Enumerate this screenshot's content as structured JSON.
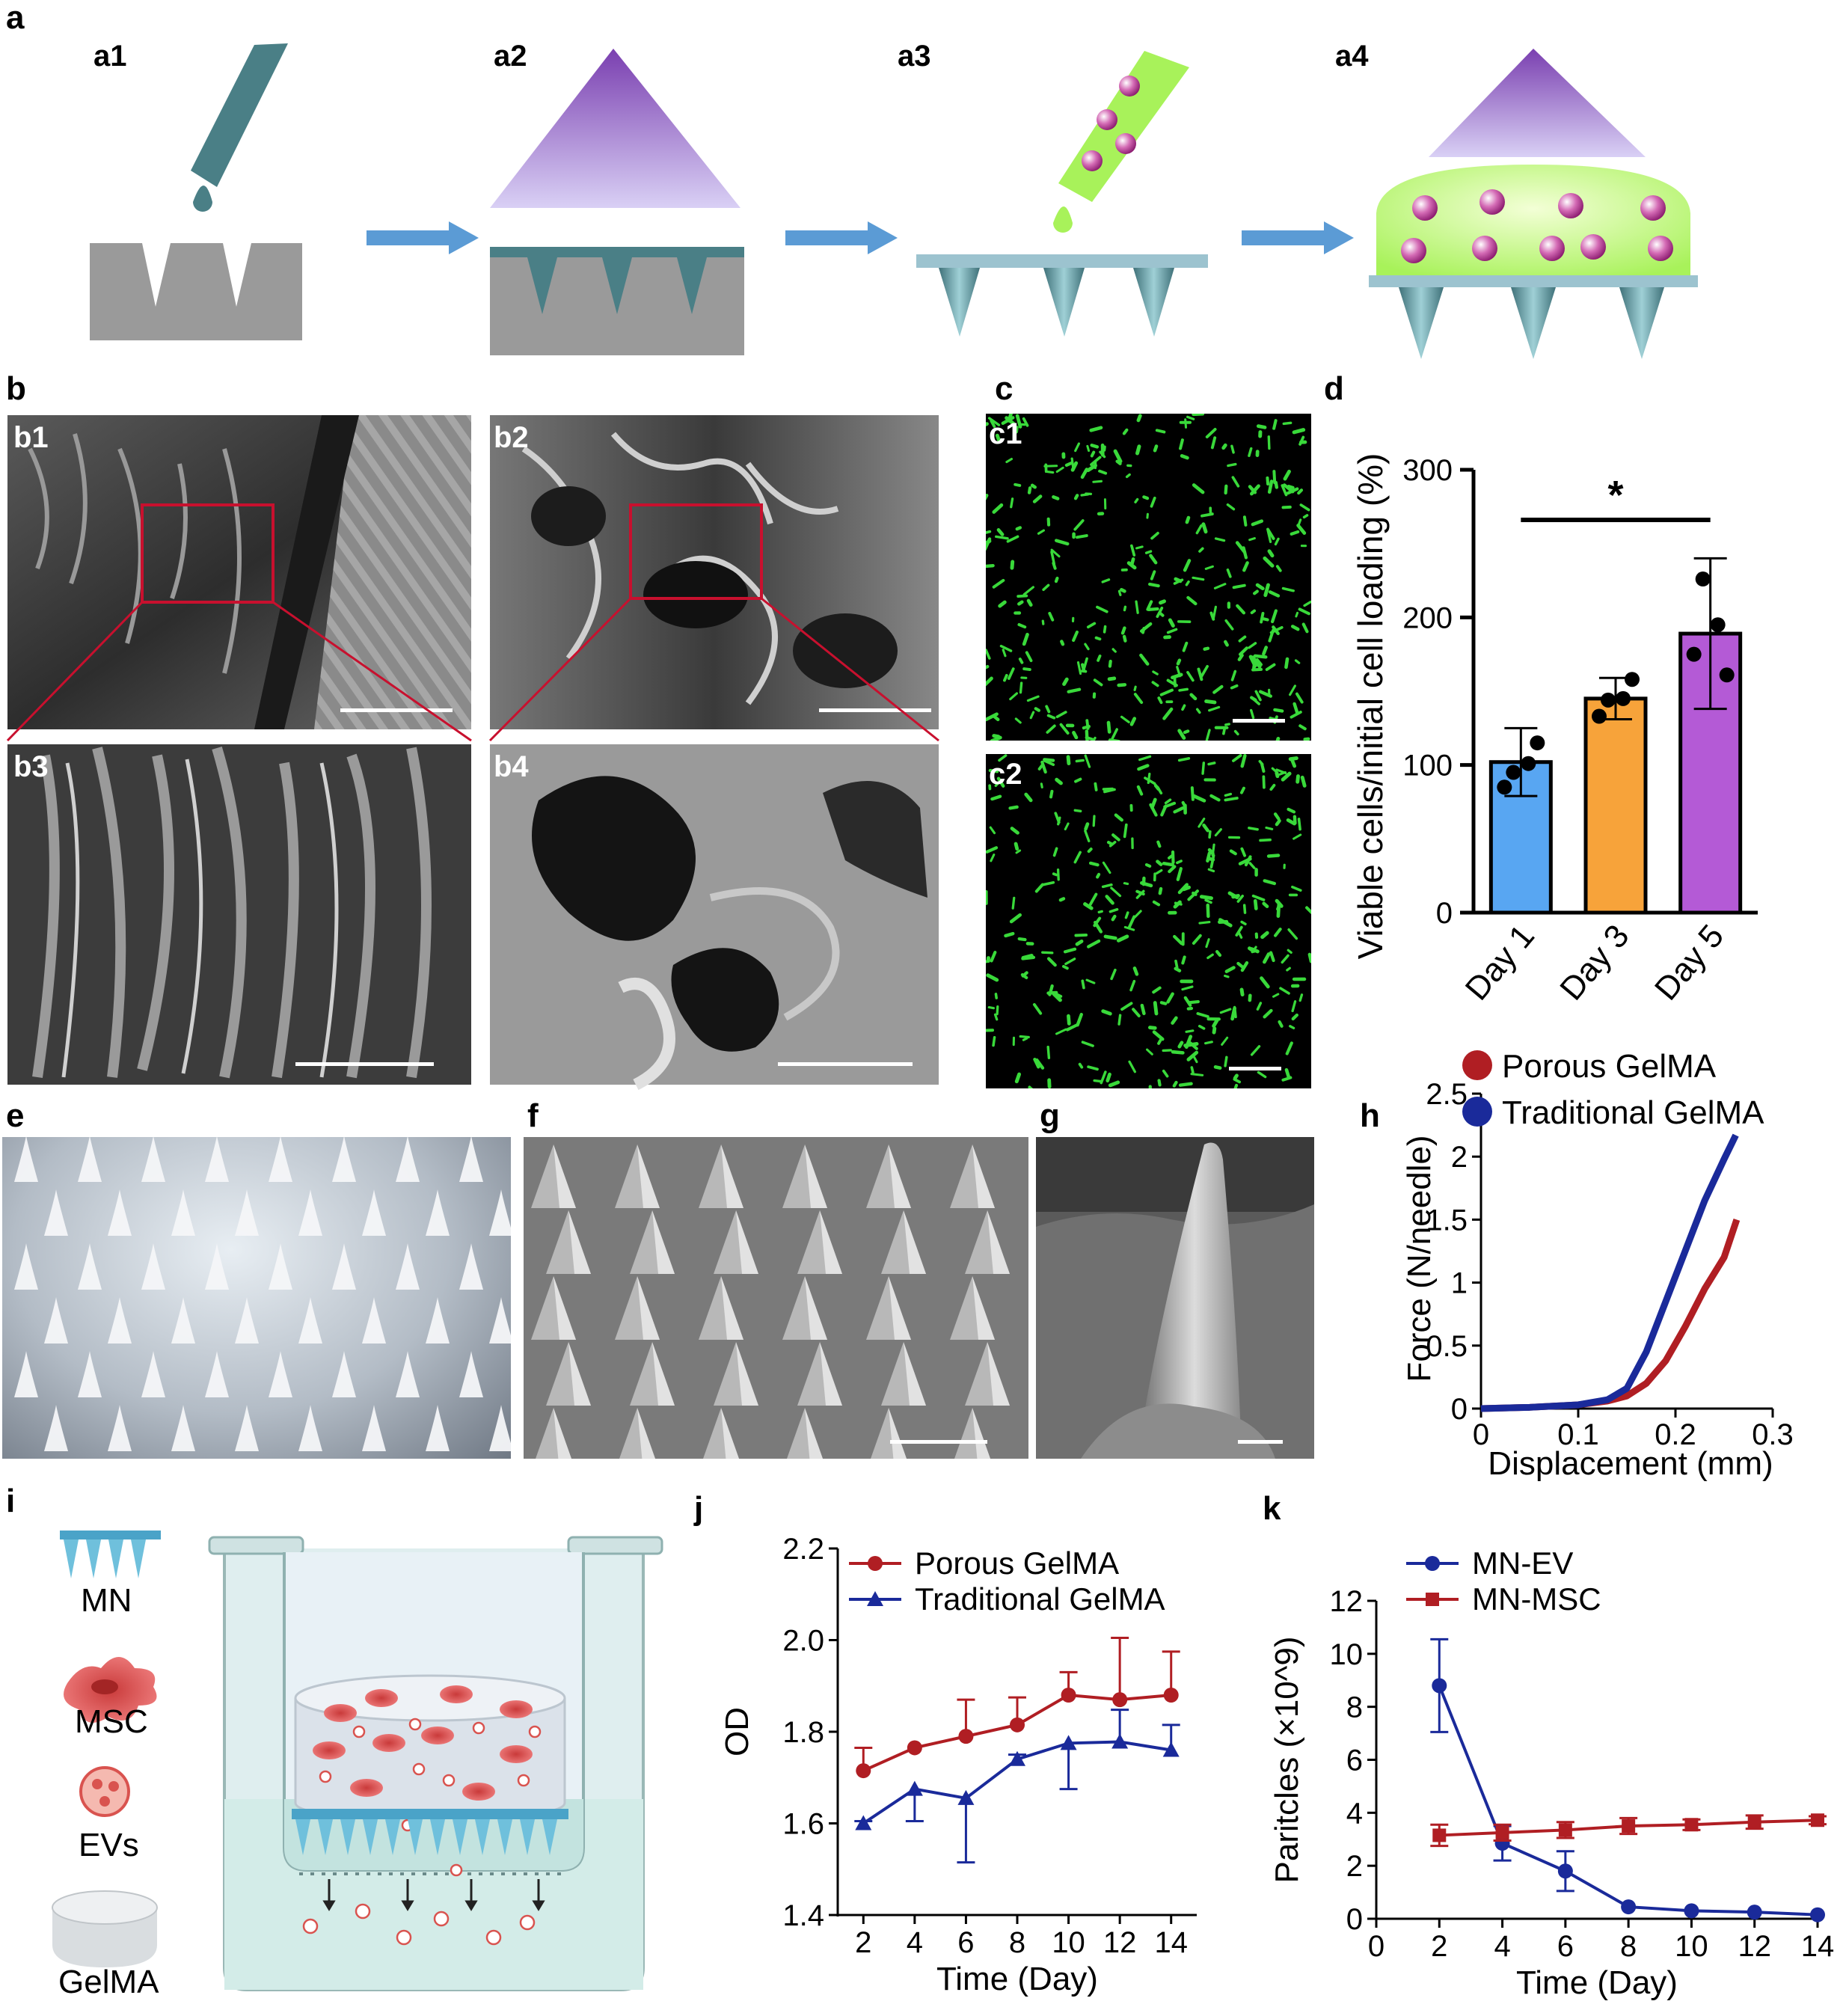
{
  "figure": {
    "panel_labels": {
      "a": "a",
      "b": "b",
      "c": "c",
      "d": "d",
      "e": "e",
      "f": "f",
      "g": "g",
      "h": "h",
      "i": "i",
      "j": "j",
      "k": "k"
    },
    "sub_labels": {
      "a1": "a1",
      "a2": "a2",
      "a3": "a3",
      "a4": "a4",
      "b1": "b1",
      "b2": "b2",
      "b3": "b3",
      "b4": "b4",
      "c1": "c1",
      "c2": "c2"
    }
  },
  "colors": {
    "mold_gray": "#9a9a9a",
    "resin_teal": "#4a7f86",
    "uv_purple": "#7a3fb0",
    "gel_green": "#a8f25a",
    "arrow_blue": "#5b9bd5",
    "plate_blue": "#9cc3cf",
    "cell_pink": "#b83a8e",
    "live_green": "#39d93a",
    "bar_day1": "#58a6f2",
    "bar_day3": "#f7a33a",
    "bar_day5": "#b45ad6",
    "porous_red": "#b01e23",
    "traditional_blue": "#1a2a9a"
  },
  "legend_i": {
    "mn": "MN",
    "msc": "MSC",
    "evs": "EVs",
    "gelma": "GelMA"
  },
  "chart_data": [
    {
      "id": "d",
      "type": "bar",
      "categories": [
        "Day 1",
        "Day 3",
        "Day 5"
      ],
      "values": [
        102,
        145,
        189
      ],
      "errors": [
        23,
        14,
        51
      ],
      "points": [
        [
          95,
          85,
          115,
          101
        ],
        [
          144,
          133,
          158,
          145
        ],
        [
          226,
          175,
          161,
          195
        ]
      ],
      "ylabel": "Viable cells/initial cell loading (%)",
      "yticks": [
        "0",
        "100",
        "200",
        "300"
      ],
      "ylim": [
        0,
        300
      ],
      "significance": "*"
    },
    {
      "id": "h",
      "type": "line",
      "xlabel": "Displacement (mm)",
      "ylabel": "Force (N/needle)",
      "xlim": [
        0,
        0.3
      ],
      "ylim": [
        0,
        2.5
      ],
      "xticks": [
        "0",
        "0.1",
        "0.2",
        "0.3"
      ],
      "yticks": [
        "0",
        "0.5",
        "1",
        "1.5",
        "2",
        "2.5"
      ],
      "series": [
        {
          "name": "Porous GelMA",
          "x": [
            0,
            0.05,
            0.1,
            0.13,
            0.15,
            0.17,
            0.19,
            0.21,
            0.23,
            0.25,
            0.263
          ],
          "y": [
            0,
            0.01,
            0.03,
            0.06,
            0.1,
            0.2,
            0.38,
            0.65,
            0.95,
            1.2,
            1.5
          ]
        },
        {
          "name": "Traditional GelMA",
          "x": [
            0,
            0.05,
            0.1,
            0.13,
            0.15,
            0.17,
            0.19,
            0.21,
            0.23,
            0.25,
            0.262
          ],
          "y": [
            0,
            0.01,
            0.03,
            0.07,
            0.16,
            0.45,
            0.85,
            1.25,
            1.65,
            1.98,
            2.17
          ]
        }
      ]
    },
    {
      "id": "j",
      "type": "line",
      "xlabel": "Time (Day)",
      "ylabel": "OD",
      "xlim": [
        1,
        15
      ],
      "ylim": [
        1.4,
        2.2
      ],
      "xticks": [
        "2",
        "4",
        "6",
        "8",
        "10",
        "12",
        "14"
      ],
      "yticks": [
        "1.4",
        "1.6",
        "1.8",
        "2.0",
        "2.2"
      ],
      "series": [
        {
          "name": "Porous GelMA",
          "x": [
            2,
            4,
            6,
            8,
            10,
            12,
            14
          ],
          "y": [
            1.715,
            1.765,
            1.79,
            1.815,
            1.88,
            1.87,
            1.88
          ],
          "err": [
            0.05,
            0,
            0.08,
            0.06,
            0.05,
            0.135,
            0.095
          ]
        },
        {
          "name": "Traditional GelMA",
          "x": [
            2,
            4,
            6,
            8,
            10,
            12,
            14
          ],
          "y": [
            1.6,
            1.675,
            1.655,
            1.74,
            1.775,
            1.778,
            1.76
          ],
          "err": [
            0.005,
            0.07,
            0.14,
            0.01,
            0.1,
            0.07,
            0.055
          ]
        }
      ]
    },
    {
      "id": "k",
      "type": "line",
      "xlabel": "Time (Day)",
      "ylabel": "Paritcles (×10^9)",
      "xlim": [
        0,
        14
      ],
      "ylim": [
        0,
        12
      ],
      "xticks": [
        "0",
        "2",
        "4",
        "6",
        "8",
        "10",
        "12",
        "14"
      ],
      "yticks": [
        "0",
        "2",
        "4",
        "6",
        "8",
        "10",
        "12"
      ],
      "series": [
        {
          "name": "MN-EV",
          "x": [
            2,
            4,
            6,
            8,
            10,
            12,
            14
          ],
          "y": [
            8.8,
            2.85,
            1.8,
            0.45,
            0.3,
            0.25,
            0.15
          ],
          "err": [
            1.75,
            0.65,
            0.75,
            0,
            0,
            0,
            0
          ]
        },
        {
          "name": "MN-MSC",
          "x": [
            2,
            4,
            6,
            8,
            10,
            12,
            14
          ],
          "y": [
            3.15,
            3.25,
            3.35,
            3.5,
            3.55,
            3.65,
            3.72
          ],
          "err": [
            0.4,
            0.3,
            0.3,
            0.3,
            0.2,
            0.25,
            0.15
          ]
        }
      ]
    }
  ]
}
